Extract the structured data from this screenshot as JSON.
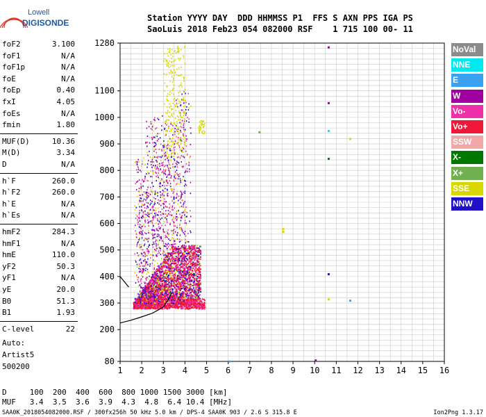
{
  "logo": {
    "line1": "Lowell",
    "line2": "DIGISONDE"
  },
  "header": {
    "labels": "Station YYYY DAY  DDD HHMMSS P1  FFS S AXN PPS IGA PS",
    "values": "SaoLuis 2018 Feb23 054 082000 RSF    1 715 100 00- 11"
  },
  "params_group1": [
    {
      "key": "foF2",
      "value": "3.100"
    },
    {
      "key": "foF1",
      "value": "N/A"
    },
    {
      "key": "foF1p",
      "value": "N/A"
    },
    {
      "key": "foE",
      "value": "N/A"
    },
    {
      "key": "foEp",
      "value": "0.40"
    },
    {
      "key": "fxI",
      "value": "4.05"
    },
    {
      "key": "foEs",
      "value": "N/A"
    },
    {
      "key": "fmin",
      "value": "1.80"
    }
  ],
  "params_group2": [
    {
      "key": "MUF(D)",
      "value": "10.36"
    },
    {
      "key": "M(D)",
      "value": "3.34"
    },
    {
      "key": "D",
      "value": "N/A"
    }
  ],
  "params_group3": [
    {
      "key": "h`F",
      "value": "260.0"
    },
    {
      "key": "h`F2",
      "value": "260.0"
    },
    {
      "key": "h`E",
      "value": "N/A"
    },
    {
      "key": "h`Es",
      "value": "N/A"
    }
  ],
  "params_group4": [
    {
      "key": "hmF2",
      "value": "284.3"
    },
    {
      "key": "hmF1",
      "value": "N/A"
    },
    {
      "key": "hmE",
      "value": "110.0"
    },
    {
      "key": "yF2",
      "value": "50.3"
    },
    {
      "key": "yF1",
      "value": "N/A"
    },
    {
      "key": "yE",
      "value": "20.0"
    },
    {
      "key": "B0",
      "value": "51.3"
    },
    {
      "key": "B1",
      "value": "1.93"
    }
  ],
  "params_group5": [
    {
      "key": "C-level",
      "value": "22"
    }
  ],
  "auto": {
    "line1": "Auto:",
    "line2": "Artist5",
    "line3": "500200"
  },
  "muf_table": {
    "d_row": "D     100  200  400  600  800 1000 1500 3000 [km]",
    "muf_row": "MUF   3.4  3.5  3.6  3.9  4.3  4.8  6.4 10.4 [MHz]"
  },
  "footer": {
    "left": "SAA0K_2018054082000.RSF / 300fx256h 50 kHz 5.0 km / DPS-4 SAA0K 903 / 2.6 S 315.8 E",
    "right": "Ion2Png 1.3.17"
  },
  "legend": [
    {
      "label": "NoVal",
      "color": "#8c8c8c"
    },
    {
      "label": "NNE",
      "color": "#00e8f0"
    },
    {
      "label": "E",
      "color": "#3aa0f0"
    },
    {
      "label": "W",
      "color": "#a000a0"
    },
    {
      "label": "Vo-",
      "color": "#f030a8"
    },
    {
      "label": "Vo+",
      "color": "#f01838"
    },
    {
      "label": "SSW",
      "color": "#f0a8a8"
    },
    {
      "label": "X-",
      "color": "#007800"
    },
    {
      "label": "X+",
      "color": "#70b050"
    },
    {
      "label": "SSE",
      "color": "#d8d800"
    },
    {
      "label": "NNW",
      "color": "#2010c8"
    }
  ],
  "chart_data": {
    "type": "scatter",
    "xlim": [
      1,
      16
    ],
    "ylim": [
      80,
      1280
    ],
    "x_ticks": [
      1,
      2,
      3,
      4,
      5,
      6,
      7,
      8,
      9,
      10,
      11,
      12,
      13,
      14,
      15,
      16
    ],
    "y_ticks": [
      80,
      200,
      300,
      400,
      500,
      600,
      700,
      800,
      900,
      1000,
      1100,
      1280
    ],
    "grid": true,
    "profile_curves": [
      {
        "name": "",
        "x": [
          1,
          1.5,
          2,
          2.5,
          3,
          3.2,
          3.4
        ],
        "y": [
          225,
          235,
          248,
          262,
          285,
          310,
          340
        ]
      },
      {
        "name": "",
        "x": [
          1,
          1.2,
          1.4
        ],
        "y": [
          400,
          380,
          360
        ]
      }
    ],
    "isolated_points": [
      {
        "x": 10.6,
        "y": 1265,
        "color": "#a000a0"
      },
      {
        "x": 10.6,
        "y": 1055,
        "color": "#a000a0"
      },
      {
        "x": 10.6,
        "y": 950,
        "color": "#00e8f0"
      },
      {
        "x": 10.6,
        "y": 845,
        "color": "#007800"
      },
      {
        "x": 11.6,
        "y": 920,
        "color": "#d8d800"
      },
      {
        "x": 10.6,
        "y": 410,
        "color": "#2010c8"
      },
      {
        "x": 10.6,
        "y": 315,
        "color": "#d8d800"
      },
      {
        "x": 11.6,
        "y": 310,
        "color": "#3aa0f0"
      },
      {
        "x": 8.5,
        "y": 580,
        "color": "#d8d800"
      },
      {
        "x": 8.5,
        "y": 570,
        "color": "#d8d800"
      },
      {
        "x": 7.4,
        "y": 945,
        "color": "#70b050"
      },
      {
        "x": 10.0,
        "y": 85,
        "color": "#a000a0"
      },
      {
        "x": 6.0,
        "y": 81,
        "color": "#3aa0f0"
      }
    ]
  }
}
